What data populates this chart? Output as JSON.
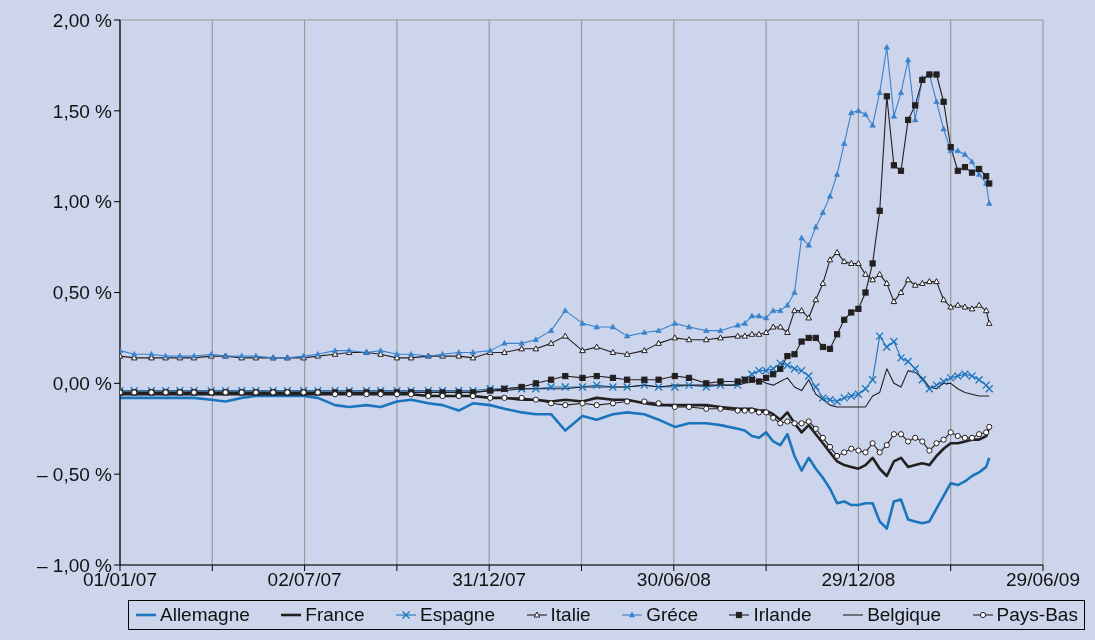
{
  "chart_data": {
    "type": "line",
    "x": [
      "2007-01-01",
      "2007-01-15",
      "2007-02-01",
      "2007-02-15",
      "2007-03-01",
      "2007-03-15",
      "2007-04-01",
      "2007-04-15",
      "2007-05-01",
      "2007-05-15",
      "2007-06-01",
      "2007-06-15",
      "2007-07-01",
      "2007-07-15",
      "2007-08-01",
      "2007-08-15",
      "2007-09-01",
      "2007-09-15",
      "2007-10-01",
      "2007-10-15",
      "2007-11-01",
      "2007-11-15",
      "2007-12-01",
      "2007-12-15",
      "2008-01-01",
      "2008-01-15",
      "2008-02-01",
      "2008-02-15",
      "2008-03-01",
      "2008-03-15",
      "2008-04-01",
      "2008-04-15",
      "2008-05-01",
      "2008-05-15",
      "2008-06-01",
      "2008-06-15",
      "2008-07-01",
      "2008-07-15",
      "2008-08-01",
      "2008-08-15",
      "2008-09-01",
      "2008-09-08",
      "2008-09-15",
      "2008-09-22",
      "2008-09-29",
      "2008-10-06",
      "2008-10-13",
      "2008-10-20",
      "2008-10-27",
      "2008-11-03",
      "2008-11-10",
      "2008-11-17",
      "2008-11-24",
      "2008-12-01",
      "2008-12-08",
      "2008-12-15",
      "2008-12-22",
      "2008-12-29",
      "2009-01-05",
      "2009-01-12",
      "2009-01-19",
      "2009-01-26",
      "2009-02-02",
      "2009-02-09",
      "2009-02-16",
      "2009-02-23",
      "2009-03-02",
      "2009-03-09",
      "2009-03-16",
      "2009-03-23",
      "2009-03-30",
      "2009-04-06",
      "2009-04-13",
      "2009-04-20",
      "2009-04-27",
      "2009-05-04",
      "2009-05-07"
    ],
    "series": [
      {
        "name": "Allemagne",
        "color": "#1b75bc",
        "marker": "none",
        "values": [
          -0.08,
          -0.08,
          -0.08,
          -0.08,
          -0.08,
          -0.08,
          -0.09,
          -0.1,
          -0.08,
          -0.07,
          -0.07,
          -0.07,
          -0.07,
          -0.08,
          -0.12,
          -0.13,
          -0.12,
          -0.13,
          -0.1,
          -0.09,
          -0.11,
          -0.12,
          -0.15,
          -0.11,
          -0.12,
          -0.14,
          -0.16,
          -0.17,
          -0.17,
          -0.26,
          -0.18,
          -0.2,
          -0.17,
          -0.16,
          -0.17,
          -0.2,
          -0.24,
          -0.22,
          -0.22,
          -0.23,
          -0.25,
          -0.26,
          -0.29,
          -0.3,
          -0.27,
          -0.32,
          -0.34,
          -0.28,
          -0.4,
          -0.48,
          -0.41,
          -0.47,
          -0.52,
          -0.58,
          -0.66,
          -0.65,
          -0.67,
          -0.67,
          -0.66,
          -0.66,
          -0.76,
          -0.8,
          -0.65,
          -0.64,
          -0.75,
          -0.76,
          -0.77,
          -0.76,
          -0.69,
          -0.62,
          -0.55,
          -0.56,
          -0.54,
          -0.51,
          -0.49,
          -0.46,
          -0.41
        ]
      },
      {
        "name": "France",
        "color": "#231f20",
        "marker": "none",
        "values": [
          -0.06,
          -0.06,
          -0.06,
          -0.06,
          -0.06,
          -0.06,
          -0.06,
          -0.06,
          -0.06,
          -0.06,
          -0.06,
          -0.06,
          -0.06,
          -0.06,
          -0.06,
          -0.06,
          -0.06,
          -0.06,
          -0.06,
          -0.06,
          -0.07,
          -0.07,
          -0.07,
          -0.07,
          -0.08,
          -0.08,
          -0.09,
          -0.09,
          -0.1,
          -0.09,
          -0.1,
          -0.08,
          -0.09,
          -0.09,
          -0.11,
          -0.12,
          -0.12,
          -0.12,
          -0.12,
          -0.13,
          -0.14,
          -0.14,
          -0.14,
          -0.15,
          -0.15,
          -0.17,
          -0.2,
          -0.16,
          -0.22,
          -0.27,
          -0.23,
          -0.28,
          -0.33,
          -0.38,
          -0.43,
          -0.45,
          -0.46,
          -0.47,
          -0.45,
          -0.41,
          -0.47,
          -0.51,
          -0.43,
          -0.41,
          -0.46,
          -0.45,
          -0.44,
          -0.45,
          -0.4,
          -0.36,
          -0.33,
          -0.33,
          -0.32,
          -0.31,
          -0.31,
          -0.29,
          -0.24
        ]
      },
      {
        "name": "Espagne",
        "color": "#1b75bc",
        "marker": "cross",
        "values": [
          -0.04,
          -0.04,
          -0.04,
          -0.04,
          -0.04,
          -0.04,
          -0.04,
          -0.04,
          -0.04,
          -0.04,
          -0.04,
          -0.04,
          -0.04,
          -0.04,
          -0.04,
          -0.04,
          -0.04,
          -0.04,
          -0.04,
          -0.04,
          -0.04,
          -0.04,
          -0.04,
          -0.04,
          -0.03,
          -0.03,
          -0.03,
          -0.03,
          -0.02,
          -0.02,
          -0.02,
          -0.01,
          -0.02,
          -0.02,
          -0.01,
          -0.02,
          -0.02,
          -0.01,
          -0.02,
          -0.01,
          -0.01,
          0.02,
          0.05,
          0.07,
          0.07,
          0.08,
          0.11,
          0.1,
          0.08,
          0.07,
          0.04,
          -0.02,
          -0.08,
          -0.09,
          -0.1,
          -0.08,
          -0.07,
          -0.06,
          -0.03,
          0.02,
          0.26,
          0.2,
          0.23,
          0.14,
          0.12,
          0.08,
          0.02,
          -0.03,
          -0.01,
          0.01,
          0.03,
          0.04,
          0.05,
          0.04,
          0.02,
          -0.01,
          -0.03
        ]
      },
      {
        "name": "Italie",
        "color": "#231f20",
        "marker": "triangle",
        "values": [
          0.15,
          0.14,
          0.14,
          0.14,
          0.14,
          0.14,
          0.15,
          0.15,
          0.14,
          0.14,
          0.14,
          0.14,
          0.14,
          0.15,
          0.16,
          0.17,
          0.17,
          0.16,
          0.14,
          0.14,
          0.15,
          0.15,
          0.15,
          0.14,
          0.17,
          0.17,
          0.19,
          0.19,
          0.22,
          0.26,
          0.18,
          0.2,
          0.17,
          0.16,
          0.18,
          0.22,
          0.25,
          0.24,
          0.24,
          0.25,
          0.26,
          0.26,
          0.27,
          0.27,
          0.28,
          0.31,
          0.31,
          0.28,
          0.4,
          0.4,
          0.36,
          0.46,
          0.55,
          0.68,
          0.72,
          0.67,
          0.66,
          0.66,
          0.6,
          0.57,
          0.6,
          0.55,
          0.45,
          0.5,
          0.57,
          0.54,
          0.55,
          0.56,
          0.56,
          0.46,
          0.42,
          0.43,
          0.42,
          0.41,
          0.43,
          0.4,
          0.33
        ]
      },
      {
        "name": "Gréce",
        "color": "#3b82cc",
        "marker": "triangle",
        "values": [
          0.18,
          0.16,
          0.16,
          0.15,
          0.15,
          0.15,
          0.16,
          0.15,
          0.15,
          0.15,
          0.14,
          0.14,
          0.15,
          0.16,
          0.18,
          0.18,
          0.17,
          0.18,
          0.16,
          0.16,
          0.15,
          0.16,
          0.17,
          0.17,
          0.18,
          0.22,
          0.22,
          0.24,
          0.29,
          0.4,
          0.33,
          0.31,
          0.31,
          0.26,
          0.28,
          0.29,
          0.33,
          0.31,
          0.29,
          0.29,
          0.32,
          0.33,
          0.37,
          0.37,
          0.36,
          0.4,
          0.4,
          0.43,
          0.5,
          0.8,
          0.76,
          0.86,
          0.94,
          1.03,
          1.15,
          1.32,
          1.49,
          1.5,
          1.48,
          1.42,
          1.6,
          1.85,
          1.47,
          1.6,
          1.78,
          1.45,
          1.68,
          1.7,
          1.55,
          1.4,
          1.28,
          1.28,
          1.26,
          1.22,
          1.15,
          1.1,
          0.99
        ]
      },
      {
        "name": "Irlande",
        "color": "#231f20",
        "marker": "square",
        "values": [
          -0.05,
          -0.05,
          -0.05,
          -0.05,
          -0.05,
          -0.05,
          -0.05,
          -0.05,
          -0.05,
          -0.05,
          -0.05,
          -0.05,
          -0.05,
          -0.05,
          -0.05,
          -0.05,
          -0.05,
          -0.05,
          -0.05,
          -0.05,
          -0.05,
          -0.05,
          -0.05,
          -0.05,
          -0.04,
          -0.03,
          -0.02,
          0.0,
          0.02,
          0.04,
          0.03,
          0.04,
          0.03,
          0.02,
          0.02,
          0.02,
          0.04,
          0.03,
          0.0,
          0.01,
          0.01,
          0.02,
          0.02,
          0.01,
          0.03,
          0.05,
          0.08,
          0.15,
          0.16,
          0.23,
          0.25,
          0.25,
          0.2,
          0.19,
          0.27,
          0.35,
          0.39,
          0.41,
          0.5,
          0.66,
          0.95,
          1.58,
          1.2,
          1.17,
          1.45,
          1.53,
          1.67,
          1.7,
          1.7,
          1.55,
          1.3,
          1.17,
          1.19,
          1.16,
          1.18,
          1.14,
          1.1
        ]
      },
      {
        "name": "Belgique",
        "color": "#231f20",
        "marker": "none",
        "values": [
          -0.05,
          -0.05,
          -0.05,
          -0.05,
          -0.05,
          -0.05,
          -0.05,
          -0.05,
          -0.05,
          -0.05,
          -0.05,
          -0.05,
          -0.05,
          -0.05,
          -0.05,
          -0.05,
          -0.05,
          -0.05,
          -0.05,
          -0.05,
          -0.05,
          -0.05,
          -0.05,
          -0.05,
          -0.04,
          -0.04,
          -0.03,
          -0.03,
          -0.03,
          -0.03,
          -0.02,
          -0.02,
          -0.02,
          -0.02,
          -0.01,
          -0.02,
          -0.01,
          -0.01,
          -0.01,
          -0.01,
          -0.01,
          0.0,
          0.01,
          0.02,
          0.0,
          -0.01,
          0.01,
          0.03,
          -0.02,
          -0.04,
          0.02,
          -0.06,
          -0.09,
          -0.12,
          -0.13,
          -0.13,
          -0.13,
          -0.13,
          -0.13,
          -0.07,
          -0.05,
          0.08,
          0.0,
          -0.02,
          0.07,
          0.06,
          0.03,
          -0.02,
          -0.03,
          0.0,
          0.0,
          -0.03,
          -0.05,
          -0.06,
          -0.07,
          -0.07,
          -0.07
        ]
      },
      {
        "name": "Pays-Bas",
        "color": "#231f20",
        "marker": "circle",
        "values": [
          -0.05,
          -0.05,
          -0.05,
          -0.05,
          -0.05,
          -0.05,
          -0.05,
          -0.05,
          -0.05,
          -0.05,
          -0.05,
          -0.05,
          -0.05,
          -0.05,
          -0.06,
          -0.06,
          -0.06,
          -0.06,
          -0.06,
          -0.06,
          -0.07,
          -0.07,
          -0.07,
          -0.07,
          -0.08,
          -0.08,
          -0.08,
          -0.09,
          -0.11,
          -0.12,
          -0.11,
          -0.12,
          -0.11,
          -0.1,
          -0.1,
          -0.11,
          -0.13,
          -0.13,
          -0.14,
          -0.14,
          -0.15,
          -0.15,
          -0.15,
          -0.16,
          -0.16,
          -0.19,
          -0.22,
          -0.21,
          -0.22,
          -0.22,
          -0.21,
          -0.25,
          -0.3,
          -0.35,
          -0.4,
          -0.38,
          -0.36,
          -0.37,
          -0.38,
          -0.33,
          -0.38,
          -0.34,
          -0.28,
          -0.28,
          -0.32,
          -0.3,
          -0.32,
          -0.37,
          -0.33,
          -0.31,
          -0.27,
          -0.29,
          -0.3,
          -0.3,
          -0.28,
          -0.27,
          -0.24
        ]
      }
    ],
    "xlim": [
      "2007-01-01",
      "2009-06-29"
    ],
    "xticks": [
      {
        "value": "2007-01-01",
        "label": "01/01/07"
      },
      {
        "value": "2007-04-02",
        "label": null
      },
      {
        "value": "2007-07-02",
        "label": "02/07/07"
      },
      {
        "value": "2007-10-01",
        "label": null
      },
      {
        "value": "2007-12-31",
        "label": "31/12/07"
      },
      {
        "value": "2008-03-31",
        "label": null
      },
      {
        "value": "2008-06-30",
        "label": "30/06/08"
      },
      {
        "value": "2008-09-29",
        "label": null
      },
      {
        "value": "2008-12-29",
        "label": "29/12/08"
      },
      {
        "value": "2009-03-30",
        "label": null
      },
      {
        "value": "2009-06-29",
        "label": "29/06/09"
      }
    ],
    "ylim": [
      -1,
      2
    ],
    "yticks": [
      {
        "value": -1,
        "label": "– 1,00 %"
      },
      {
        "value": -0.5,
        "label": "– 0,50 %"
      },
      {
        "value": 0,
        "label": "0,00 %"
      },
      {
        "value": 0.5,
        "label": "0,50 %"
      },
      {
        "value": 1,
        "label": "1,00 %"
      },
      {
        "value": 1.5,
        "label": "1,50 %"
      },
      {
        "value": 2,
        "label": "2,00 %"
      }
    ],
    "grid": true,
    "legend": "bottom"
  }
}
